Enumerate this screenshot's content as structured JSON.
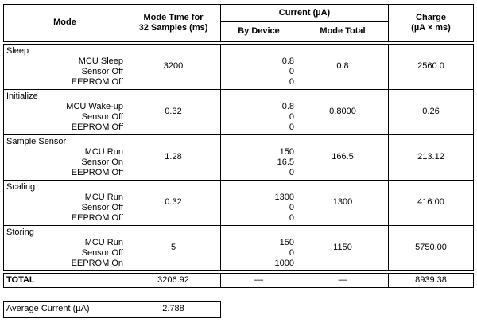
{
  "table": {
    "headers": {
      "mode": "Mode",
      "mode_time_line1": "Mode Time for",
      "mode_time_line2": "32 Samples (ms)",
      "current_group": "Current (µA)",
      "by_device": "By Device",
      "mode_total": "Mode Total",
      "charge_line1": "Charge",
      "charge_line2": "(µA × ms)"
    },
    "sections": [
      {
        "name": "Sleep",
        "devices": [
          "MCU Sleep",
          "Sensor Off",
          "EEPROM Off"
        ],
        "mode_time": "3200",
        "by_device": [
          "0.8",
          "0",
          "0"
        ],
        "mode_total": "0.8",
        "charge": "2560.0"
      },
      {
        "name": "Initialize",
        "devices": [
          "MCU Wake-up",
          "Sensor Off",
          "EEPROM Off"
        ],
        "mode_time": "0.32",
        "by_device": [
          "0.8",
          "0",
          "0"
        ],
        "mode_total": "0.8000",
        "charge": "0.26"
      },
      {
        "name": "Sample Sensor",
        "devices": [
          "MCU Run",
          "Sensor On",
          "EEPROM Off"
        ],
        "mode_time": "1.28",
        "by_device": [
          "150",
          "16.5",
          "0"
        ],
        "mode_total": "166.5",
        "charge": "213.12"
      },
      {
        "name": "Scaling",
        "devices": [
          "MCU Run",
          "Sensor Off",
          "EEPROM Off"
        ],
        "mode_time": "0.32",
        "by_device": [
          "1300",
          "0",
          "0"
        ],
        "mode_total": "1300",
        "charge": "416.00"
      },
      {
        "name": "Storing",
        "devices": [
          "MCU Run",
          "Sensor Off",
          "EEPROM On"
        ],
        "mode_time": "5",
        "by_device": [
          "150",
          "0",
          "1000"
        ],
        "mode_total": "1150",
        "charge": "5750.00"
      }
    ],
    "total_row": {
      "label": "TOTAL",
      "mode_time": "3206.92",
      "by_device": "—",
      "mode_total": "—",
      "charge": "8939.38"
    }
  },
  "average": {
    "label": "Average Current (µA)",
    "value": "2.788"
  }
}
